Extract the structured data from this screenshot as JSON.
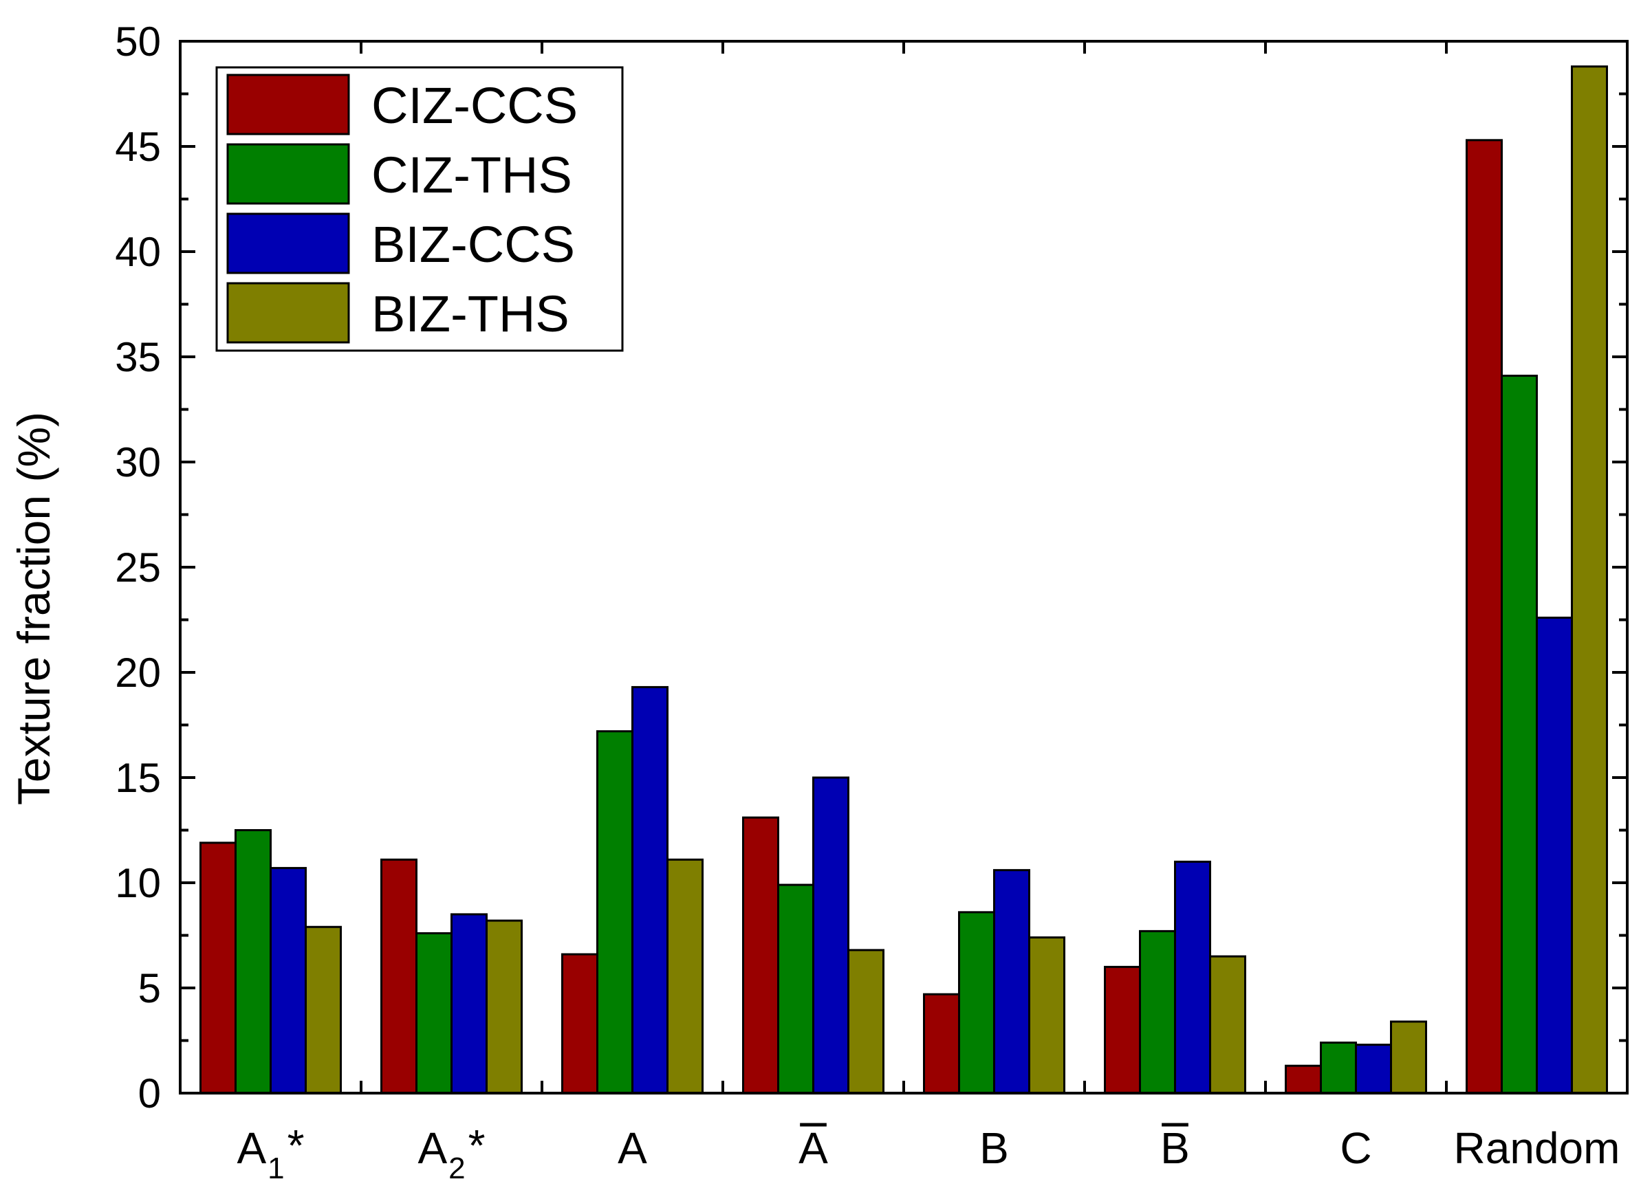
{
  "chart_data": {
    "type": "bar",
    "ylabel": "Texture fraction (%)",
    "xlabel": "",
    "ylim": [
      0,
      50
    ],
    "yticks": [
      0,
      5,
      10,
      15,
      20,
      25,
      30,
      35,
      40,
      45,
      50
    ],
    "grid": false,
    "legend_position": "top-left",
    "categories": [
      {
        "base": "A",
        "sub": "1",
        "sup": "*",
        "overline": false
      },
      {
        "base": "A",
        "sub": "2",
        "sup": "*",
        "overline": false
      },
      {
        "base": "A",
        "sub": "",
        "sup": "",
        "overline": false
      },
      {
        "base": "A",
        "sub": "",
        "sup": "",
        "overline": true
      },
      {
        "base": "B",
        "sub": "",
        "sup": "",
        "overline": false
      },
      {
        "base": "B",
        "sub": "",
        "sup": "",
        "overline": true
      },
      {
        "base": "C",
        "sub": "",
        "sup": "",
        "overline": false
      },
      {
        "base": "Random",
        "sub": "",
        "sup": "",
        "overline": false
      }
    ],
    "series": [
      {
        "name": "CIZ-CCS",
        "color": "#990000",
        "values": [
          11.9,
          11.1,
          6.6,
          13.1,
          4.7,
          6.0,
          1.3,
          45.3
        ]
      },
      {
        "name": "CIZ-THS",
        "color": "#007F00",
        "values": [
          12.5,
          7.6,
          17.2,
          9.9,
          8.6,
          7.7,
          2.4,
          34.1
        ]
      },
      {
        "name": "BIZ-CCS",
        "color": "#0000B3",
        "values": [
          10.7,
          8.5,
          19.3,
          15.0,
          10.6,
          11.0,
          2.3,
          22.6
        ]
      },
      {
        "name": "BIZ-THS",
        "color": "#7F7F00",
        "values": [
          7.9,
          8.2,
          11.1,
          6.8,
          7.4,
          6.5,
          3.4,
          48.8
        ]
      }
    ]
  }
}
